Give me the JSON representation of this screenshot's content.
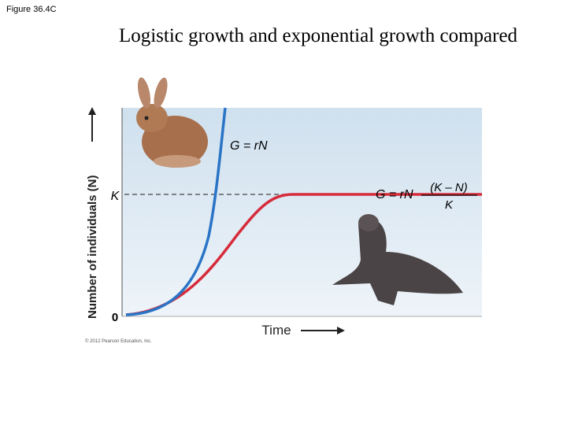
{
  "header": {
    "figure_label": "Figure 36.4C",
    "title": "Logistic growth and exponential growth compared"
  },
  "graph": {
    "y_axis_label": "Number of individuals (N)",
    "x_axis_label": "Time",
    "k_label": "K",
    "origin_label": "0",
    "exponential_equation": "G = rN",
    "logistic_equation": {
      "left": "G = rN",
      "numerator": "(K – N)",
      "denominator": "K"
    }
  },
  "footer": {
    "copyright": "© 2012 Pearson Education, Inc."
  }
}
